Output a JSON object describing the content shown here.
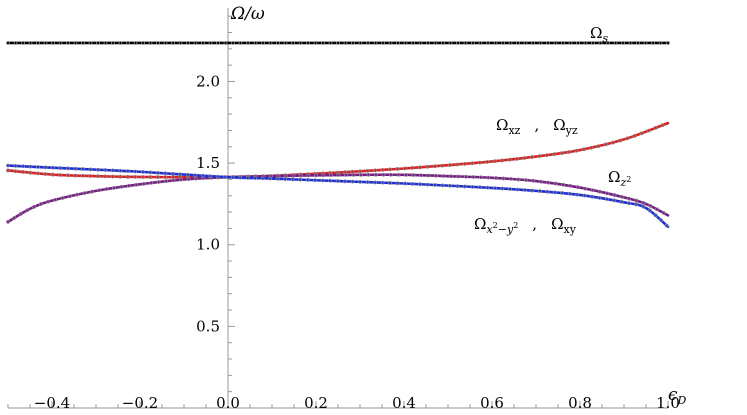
{
  "chart_data": {
    "type": "line",
    "xlabel": "ϵD",
    "ylabel": "Ω/ω",
    "xlim": [
      -0.5,
      1.0
    ],
    "ylim": [
      0.0,
      2.45
    ],
    "x_ticks": [
      -0.4,
      -0.2,
      0.0,
      0.2,
      0.4,
      0.6,
      0.8,
      1.0
    ],
    "x_tick_labels": [
      "−0.4",
      "−0.2",
      "0.0",
      "0.2",
      "0.4",
      "0.6",
      "0.8",
      "1.0"
    ],
    "y_ticks": [
      0.5,
      1.0,
      1.5,
      2.0
    ],
    "y_tick_labels": [
      "0.5",
      "1.0",
      "1.5",
      "2.0"
    ],
    "grid": false,
    "series": [
      {
        "name": "Ωs",
        "color": "#000000",
        "x": [
          -0.5,
          -0.25,
          0.0,
          0.25,
          0.5,
          0.75,
          1.0
        ],
        "y": [
          2.236,
          2.236,
          2.236,
          2.236,
          2.236,
          2.236,
          2.236
        ]
      },
      {
        "name": "Ωxz , Ωyz",
        "color": "#e02020",
        "x": [
          -0.5,
          -0.4,
          -0.3,
          -0.2,
          -0.1,
          0.0,
          0.1,
          0.2,
          0.3,
          0.4,
          0.5,
          0.6,
          0.7,
          0.8,
          0.9,
          1.0
        ],
        "y": [
          1.455,
          1.43,
          1.42,
          1.415,
          1.414,
          1.414,
          1.422,
          1.435,
          1.45,
          1.467,
          1.487,
          1.51,
          1.54,
          1.58,
          1.645,
          1.745
        ]
      },
      {
        "name": "Ωz²",
        "color": "#7a1a8a",
        "x": [
          -0.5,
          -0.45,
          -0.4,
          -0.3,
          -0.2,
          -0.1,
          0.0,
          0.1,
          0.2,
          0.3,
          0.4,
          0.5,
          0.6,
          0.7,
          0.8,
          0.9,
          0.95,
          1.0
        ],
        "y": [
          1.14,
          1.22,
          1.27,
          1.33,
          1.37,
          1.4,
          1.414,
          1.42,
          1.425,
          1.428,
          1.428,
          1.42,
          1.41,
          1.39,
          1.35,
          1.29,
          1.25,
          1.18
        ]
      },
      {
        "name": "Ωx²−y² , Ωxy",
        "color": "#1a2ee0",
        "x": [
          -0.5,
          -0.4,
          -0.3,
          -0.2,
          -0.1,
          0.0,
          0.1,
          0.2,
          0.3,
          0.4,
          0.5,
          0.6,
          0.7,
          0.8,
          0.9,
          0.95,
          1.0
        ],
        "y": [
          1.485,
          1.472,
          1.46,
          1.447,
          1.43,
          1.414,
          1.405,
          1.395,
          1.385,
          1.375,
          1.362,
          1.348,
          1.33,
          1.305,
          1.26,
          1.225,
          1.11
        ]
      }
    ],
    "annotations": {
      "s": {
        "base": "Ω",
        "sub": "s"
      },
      "xz_yz": {
        "a_base": "Ω",
        "a_sub": "xz",
        "sep": ",",
        "b_base": "Ω",
        "b_sub": "yz"
      },
      "z2": {
        "base": "Ω",
        "sub": "z",
        "sup": "2"
      },
      "x2y2_xy": {
        "a_base": "Ω",
        "a_sub1": "x",
        "a_sup1": "2",
        "a_mid": "−y",
        "a_sup2": "2",
        "sep": ",",
        "b_base": "Ω",
        "b_sub": "xy"
      }
    },
    "axis_titles": {
      "y_full": "Ω/ω",
      "x_base": "ϵ",
      "x_sub": "D"
    }
  }
}
